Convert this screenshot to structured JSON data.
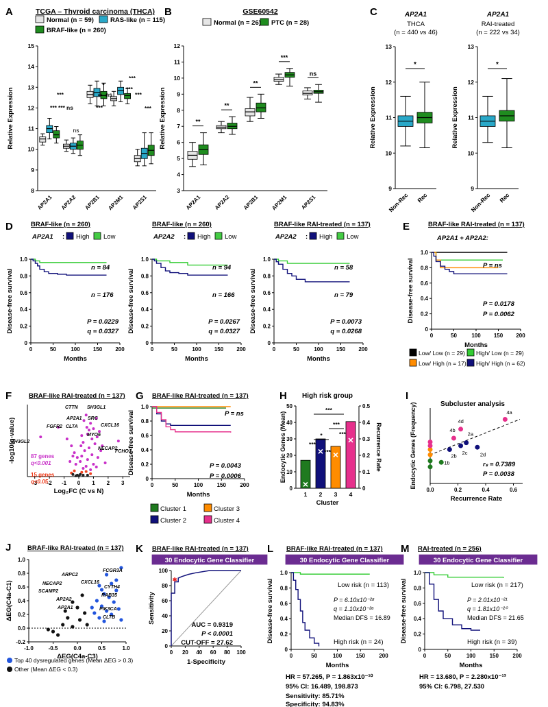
{
  "chart_data": [
    {
      "id": "A",
      "type": "boxplot",
      "letter": "A",
      "title": "TCGA – Thyroid carcinoma (THCA)",
      "ylabel": "Relative Expression",
      "ylim": [
        8,
        15
      ],
      "yticks": [
        8,
        9,
        10,
        11,
        12,
        13,
        14,
        15
      ],
      "groups": [
        {
          "name": "Normal",
          "n": "59",
          "color": "#e6e6e6"
        },
        {
          "name": "RAS-like",
          "n": "115",
          "color": "#29a8c8"
        },
        {
          "name": "BRAF-like",
          "n": "260",
          "color": "#1f8c1f"
        }
      ],
      "legend": [
        "Normal (n = 59)",
        "RAS-like (n = 115)",
        "BRAF-like (n = 260)"
      ],
      "categories": [
        "AP2A1",
        "AP2A2",
        "AP2B1",
        "AP2M1",
        "AP2S1"
      ],
      "boxes": [
        [
          [
            10.2,
            10.35,
            10.5,
            10.6,
            10.75
          ],
          [
            10.5,
            10.8,
            11.0,
            11.15,
            11.5
          ],
          [
            10.3,
            10.55,
            10.7,
            10.9,
            11.1
          ]
        ],
        [
          [
            9.9,
            10.05,
            10.15,
            10.25,
            10.45
          ],
          [
            9.8,
            10.0,
            10.15,
            10.3,
            10.55
          ],
          [
            9.7,
            10.0,
            10.2,
            10.4,
            10.7
          ]
        ],
        [
          [
            12.2,
            12.5,
            12.65,
            12.8,
            13.1
          ],
          [
            12.1,
            12.55,
            12.75,
            12.95,
            13.3
          ],
          [
            12.1,
            12.45,
            12.6,
            12.8,
            13.2
          ]
        ],
        [
          [
            12.1,
            12.35,
            12.45,
            12.55,
            12.8
          ],
          [
            12.3,
            12.65,
            12.85,
            13.0,
            13.3
          ],
          [
            12.2,
            12.45,
            12.6,
            12.7,
            12.95
          ]
        ],
        [
          [
            9.2,
            9.4,
            9.55,
            9.7,
            10.0
          ],
          [
            9.2,
            9.55,
            9.8,
            10.05,
            10.8
          ],
          [
            9.3,
            9.7,
            9.95,
            10.2,
            10.8
          ]
        ]
      ],
      "annotations": [
        "***",
        "***",
        "***",
        "ns",
        "*",
        "**",
        "ns",
        "***",
        "***",
        "***",
        "***",
        "***"
      ]
    },
    {
      "id": "B",
      "type": "boxplot",
      "letter": "B",
      "title": "GSE60542",
      "ylabel": "Relative Expression",
      "ylim": [
        3,
        12
      ],
      "yticks": [
        3,
        4,
        5,
        6,
        7,
        8,
        9,
        10,
        11,
        12
      ],
      "groups": [
        {
          "name": "Normal",
          "n": "26",
          "color": "#e6e6e6"
        },
        {
          "name": "PTC",
          "n": "28",
          "color": "#1f8c1f"
        }
      ],
      "legend": [
        "Normal (n = 26)",
        "PTC (n = 28)"
      ],
      "categories": [
        "AP2A1",
        "AP2A2",
        "AP2B1",
        "AP2M1",
        "AP2S1"
      ],
      "boxes": [
        [
          [
            4.5,
            4.95,
            5.2,
            5.45,
            6.0
          ],
          [
            4.6,
            5.25,
            5.55,
            5.85,
            6.6
          ]
        ],
        [
          [
            6.6,
            6.85,
            6.95,
            7.05,
            7.3
          ],
          [
            6.5,
            6.85,
            7.0,
            7.2,
            7.6
          ]
        ],
        [
          [
            7.3,
            7.65,
            7.9,
            8.1,
            8.8
          ],
          [
            7.5,
            7.9,
            8.15,
            8.45,
            9.0
          ]
        ],
        [
          [
            9.6,
            9.8,
            9.9,
            10.05,
            10.25
          ],
          [
            9.5,
            10.05,
            10.2,
            10.35,
            10.6
          ]
        ],
        [
          [
            8.7,
            8.95,
            9.05,
            9.2,
            9.4
          ],
          [
            8.5,
            9.05,
            9.15,
            9.25,
            9.6
          ]
        ]
      ],
      "annotations": [
        "**",
        "**",
        "**",
        "***",
        "ns"
      ]
    },
    {
      "id": "C",
      "type": "boxplot",
      "letter": "C",
      "gene": "AP2A1",
      "panels": [
        {
          "subtitle": "THCA",
          "n_text": "(n = 440 vs 46)",
          "sig": "*",
          "boxes": [
            [
              10.2,
              10.75,
              10.9,
              11.05,
              11.6
            ],
            [
              10.15,
              10.85,
              11.0,
              11.15,
              12.0
            ]
          ]
        },
        {
          "subtitle": "RAI-treated",
          "n_text": "(n = 222 vs 34)",
          "sig": "*",
          "boxes": [
            [
              10.3,
              10.75,
              10.9,
              11.05,
              11.6
            ],
            [
              10.15,
              10.9,
              11.05,
              11.2,
              12.1
            ]
          ]
        }
      ],
      "categories": [
        "Non-Rec",
        "Rec"
      ],
      "ylabel": "Relative Expression",
      "ylim": [
        9,
        13
      ],
      "yticks": [
        9,
        10,
        11,
        12,
        13
      ]
    },
    {
      "id": "D",
      "type": "line",
      "letter": "D",
      "ylabel": "Disease-free survival",
      "xlabel": "Months",
      "xlim": [
        0,
        200
      ],
      "ylim": [
        0,
        1
      ],
      "plots": [
        {
          "title": "BRAF-like (n = 260)",
          "gene": "AP2A1",
          "legend_high": "High",
          "legend_low": "Low",
          "n_low": "n = 84",
          "n_high": "n = 176",
          "P": "P = 0.0229",
          "q": "q = 0.0327",
          "low_x": [
            0,
            10,
            20,
            50,
            170
          ],
          "low_y": [
            1,
            0.98,
            0.96,
            0.96,
            0.96
          ],
          "high_x": [
            0,
            5,
            10,
            15,
            20,
            30,
            40,
            60,
            80,
            170
          ],
          "high_y": [
            1,
            0.98,
            0.95,
            0.92,
            0.88,
            0.85,
            0.83,
            0.82,
            0.81,
            0.81
          ]
        },
        {
          "title": "BRAF-like (n = 260)",
          "gene": "AP2A2",
          "legend_high": "High",
          "legend_low": "Low",
          "n_low": "n = 94",
          "n_high": "n = 166",
          "P": "P = 0.0267",
          "q": "q = 0.0327",
          "low_x": [
            0,
            10,
            40,
            80,
            170
          ],
          "low_y": [
            1,
            0.98,
            0.96,
            0.93,
            0.93
          ],
          "high_x": [
            0,
            5,
            10,
            20,
            30,
            40,
            60,
            80,
            170
          ],
          "high_y": [
            1,
            0.98,
            0.95,
            0.9,
            0.86,
            0.84,
            0.83,
            0.81,
            0.81
          ]
        },
        {
          "title": "BRAF-like RAI-treated (n = 137)",
          "gene": "AP2A2",
          "legend_high": "High",
          "legend_low": "Low",
          "n_low": "n = 58",
          "n_high": "n = 79",
          "P": "P = 0.0073",
          "q": "q = 0.0268",
          "low_x": [
            0,
            10,
            30,
            170
          ],
          "low_y": [
            1,
            0.98,
            0.95,
            0.95
          ],
          "high_x": [
            0,
            5,
            10,
            20,
            30,
            40,
            50,
            70,
            170
          ],
          "high_y": [
            1,
            0.97,
            0.94,
            0.88,
            0.83,
            0.8,
            0.76,
            0.73,
            0.73
          ]
        }
      ]
    },
    {
      "id": "E",
      "type": "line",
      "letter": "E",
      "title": "BRAF-like RAI-treated (n = 137)",
      "gene": "AP2A1 + AP2A2:",
      "ylabel": "Disease-free survival",
      "xlabel": "Months",
      "pvals": [
        "P = ns",
        "P = 0.0178",
        "P = 0.0062"
      ],
      "series": [
        {
          "name": "Low/ Low (n = 29)",
          "color": "#000000",
          "x": [
            0,
            170
          ],
          "y": [
            1,
            1
          ]
        },
        {
          "name": "High/ Low (n = 29)",
          "color": "#33cc33",
          "x": [
            0,
            10,
            160
          ],
          "y": [
            1,
            0.9,
            0.9
          ]
        },
        {
          "name": "Low/ High (n = 17)",
          "color": "#ff8c00",
          "x": [
            0,
            10,
            20,
            150
          ],
          "y": [
            1,
            0.9,
            0.8,
            0.8
          ]
        },
        {
          "name": "High/ High (n = 62)",
          "color": "#10107a",
          "x": [
            0,
            5,
            10,
            20,
            30,
            40,
            50,
            170
          ],
          "y": [
            1,
            0.95,
            0.88,
            0.82,
            0.78,
            0.75,
            0.72,
            0.72
          ]
        }
      ]
    },
    {
      "id": "F",
      "type": "scatter",
      "letter": "F",
      "title": "BRAF-like RAI-treated (n = 137)",
      "xlabel": "Log₂FC (C vs N)",
      "ylabel": "-log10(q-value)",
      "xticks": [
        -3,
        -2,
        -1,
        0,
        1,
        2,
        3
      ],
      "legend_87": "87 genes",
      "legend_87b": "q<0.001",
      "legend_15": "15 genes",
      "legend_15b": "q<0.05",
      "genes": [
        "CTTN",
        "SH3GL1",
        "AP2A1",
        "SRC",
        "FGFR2",
        "CLTA",
        "CXCL16",
        "MYO6",
        "NECAP2",
        "SH3GL2",
        "FCHO1"
      ]
    },
    {
      "id": "G",
      "type": "line",
      "letter": "G",
      "title": "BRAF-like RAI-treated (n = 137)",
      "ylabel": "Disease-free survival",
      "xlabel": "Months",
      "pvals": [
        "P = ns",
        "P = 0.0043",
        "P = 0.0006"
      ],
      "series": [
        {
          "name": "Cluster 1",
          "color": "#1f7a1f",
          "x": [
            0,
            160
          ],
          "y": [
            0.98,
            0.98
          ]
        },
        {
          "name": "Cluster 2",
          "color": "#10107a",
          "x": [
            0,
            10,
            20,
            30,
            40,
            170
          ],
          "y": [
            1,
            0.9,
            0.8,
            0.76,
            0.74,
            0.74
          ]
        },
        {
          "name": "Cluster 3",
          "color": "#ff8c00",
          "x": [
            0,
            170
          ],
          "y": [
            1,
            1
          ]
        },
        {
          "name": "Cluster 4",
          "color": "#e6308c",
          "x": [
            0,
            10,
            20,
            30,
            40,
            50,
            170
          ],
          "y": [
            1,
            0.92,
            0.82,
            0.72,
            0.68,
            0.65,
            0.64
          ]
        }
      ]
    },
    {
      "id": "H",
      "type": "bar",
      "letter": "H",
      "title": "High risk group",
      "ylabel": "Endocytic Genes (Mean)",
      "y2label": "Recurrence Rate",
      "xlabel": "Cluster",
      "categories": [
        "1",
        "2",
        "3",
        "4"
      ],
      "values": [
        17,
        30,
        25.5,
        40.5
      ],
      "recurrence": [
        0.02,
        0.22,
        0.2,
        0.29
      ],
      "ylim": [
        0,
        50
      ],
      "y2lim": [
        0,
        0.5
      ],
      "colors": [
        "#1f7a1f",
        "#10107a",
        "#ff8c00",
        "#e6308c"
      ],
      "sig": [
        "***",
        "***",
        "*",
        "***",
        "***",
        "***"
      ]
    },
    {
      "id": "I",
      "type": "scatter",
      "letter": "I",
      "title": "Subcluster analysis",
      "xlabel": "Recurrence Rate",
      "ylabel": "Endocytic Genes (Frequency)",
      "xticks": [
        "0.0",
        "0.2",
        "0.4",
        "0.6"
      ],
      "rs": "rₛ = 0.7389",
      "P": "P = 0.0038",
      "labels": [
        "4a",
        "4d",
        "4b",
        "2a",
        "2b",
        "2c",
        "2d",
        "1b"
      ]
    },
    {
      "id": "J",
      "type": "scatter",
      "letter": "J",
      "title": "BRAF-like RAI-treated (n = 137)",
      "xlabel": "ΔEG(C4a-C3)",
      "ylabel": "ΔEG(C4a-C1)",
      "xticks": [
        "-1.0",
        "-0.5",
        "0.0",
        "0.5",
        "1.0"
      ],
      "yticks": [
        "-0.2",
        "0.0",
        "0.2",
        "0.4",
        "0.6",
        "0.8",
        "1.0"
      ],
      "genes": [
        "FCGR3A",
        "ARPC2",
        "CXCL16",
        "NECAP2",
        "CYTH4",
        "SCAMP2",
        "RAB35",
        "AP2A2",
        "AP2A1",
        "PIK3CA",
        "CLTB"
      ],
      "legend_blue": "Top 40 dysregulated genes (Mean ΔEG > 0.3)",
      "legend_black": "Other (Mean ΔEG < 0.3)"
    },
    {
      "id": "K",
      "type": "line",
      "letter": "K",
      "title": "BRAF-like RAI-treated (n = 137)",
      "banner": "30 Endocytic Gene Classifier",
      "xlabel": "1-Specificity",
      "ylabel": "Sensitivity",
      "xticks": [
        "0",
        "20",
        "40",
        "60",
        "80",
        "100"
      ],
      "auc": "AUC = 0.9319",
      "p": "P < 0.0001",
      "cutoff": "CUT-OFF = 27.62",
      "x": [
        0,
        0,
        5,
        5,
        10,
        10,
        15,
        25,
        35,
        55,
        100
      ],
      "y": [
        0,
        70,
        70,
        85,
        85,
        90,
        92,
        95,
        97,
        100,
        100
      ]
    },
    {
      "id": "L",
      "type": "line",
      "letter": "L",
      "title": "BRAF-like RAI-treated (n = 137)",
      "banner": "30 Endocytic Gene Classifier",
      "low": "Low risk (n = 113)",
      "high": "High risk (n = 24)",
      "P": "P = 6.10x10⁻²⁸",
      "q": "q = 1.10x10⁻²⁶",
      "dfs": "Median DFS = 16.89",
      "hr": "HR = 57.265, P = 1.863x10⁻¹⁰",
      "ci": "95% CI: 16.489, 198.873",
      "sens": "Sensitivity: 85.71%",
      "spec": "Specificity: 94.83%",
      "low_x": [
        0,
        20,
        170
      ],
      "low_y": [
        1,
        0.98,
        0.98
      ],
      "high_x": [
        0,
        5,
        10,
        15,
        20,
        25,
        30,
        40,
        50,
        60
      ],
      "high_y": [
        1,
        0.9,
        0.78,
        0.65,
        0.5,
        0.35,
        0.25,
        0.15,
        0.08,
        0.04
      ]
    },
    {
      "id": "M",
      "type": "line",
      "letter": "M",
      "title": "RAI-treated (n = 256)",
      "banner": "30 Endocytic Gene Classifier",
      "low": "Low risk (n = 217)",
      "high": "High risk (n = 39)",
      "P": "P = 2.01x10⁻²¹",
      "q": "q = 1.81x10⁻²⁰",
      "dfs": "Median DFS = 21.65",
      "hr": "HR = 13.680, P = 2.280x10⁻¹³",
      "ci": "95% CI: 6.798, 27.530",
      "low_x": [
        0,
        20,
        50,
        170
      ],
      "low_y": [
        1,
        0.97,
        0.94,
        0.93
      ],
      "high_x": [
        0,
        10,
        20,
        30,
        40,
        60,
        80,
        100,
        120
      ],
      "high_y": [
        1,
        0.85,
        0.65,
        0.5,
        0.4,
        0.32,
        0.27,
        0.25,
        0.25
      ]
    }
  ]
}
